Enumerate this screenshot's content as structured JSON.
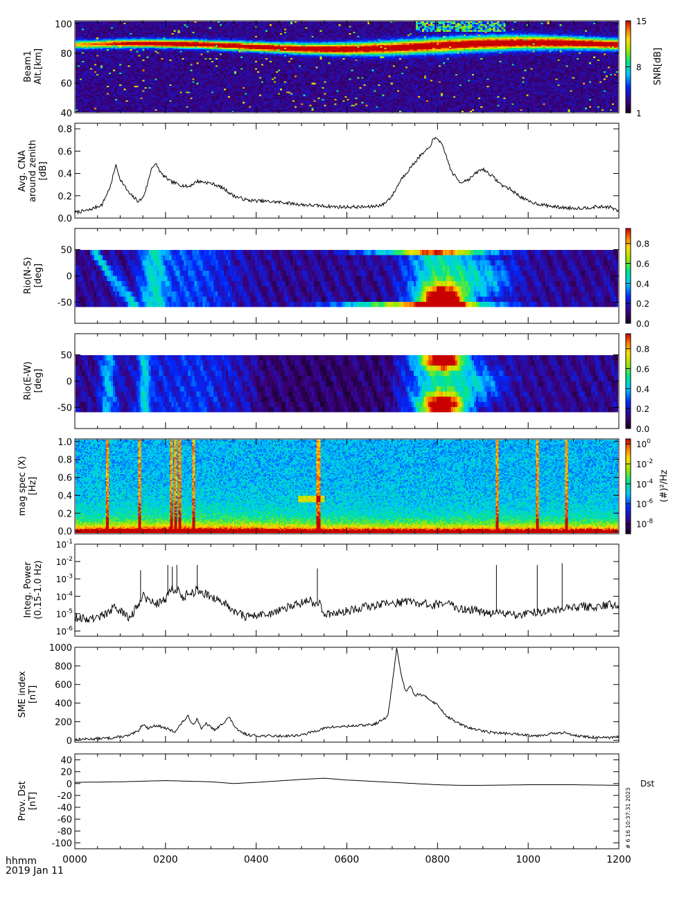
{
  "xaxis": {
    "label": "hhmm",
    "date": "2019 Jan 11",
    "range": [
      0,
      12
    ],
    "ticks": [
      0,
      2,
      4,
      6,
      8,
      10,
      12
    ],
    "tick_labels": [
      "0000",
      "0200",
      "0400",
      "0600",
      "0800",
      "1000",
      "1200"
    ]
  },
  "stamp": "#   6 16 10:37:31 2023",
  "panels": [
    {
      "id": "p1",
      "type": "heatmap",
      "scheme": "snr",
      "ylabel": [
        "Beam1",
        "Alt.[km]"
      ],
      "yrange": [
        40,
        102
      ],
      "yticks": [
        40,
        60,
        80,
        100
      ],
      "ytick_labels": [
        "40",
        "60",
        "80",
        "100"
      ],
      "colorbar": {
        "label": "SNR[dB]",
        "range": [
          1,
          15
        ],
        "ticks": [
          1,
          8,
          15
        ],
        "tick_labels": [
          "1",
          "8",
          "15"
        ]
      }
    },
    {
      "id": "p2",
      "type": "line",
      "ylabel": [
        "Avg. CNA",
        "around zenith",
        "[dB]"
      ],
      "yrange": [
        0,
        0.85
      ],
      "yticks": [
        0,
        0.2,
        0.4,
        0.6,
        0.8
      ],
      "ytick_labels": [
        "0.0",
        "0.2",
        "0.4",
        "0.6",
        "0.8"
      ],
      "series": "cna"
    },
    {
      "id": "p3",
      "type": "heatmap",
      "scheme": "rio",
      "ylabel": [
        "Rio(N-S)",
        "[deg]"
      ],
      "yrange": [
        -90,
        90
      ],
      "data_yrange": [
        -55,
        55
      ],
      "yticks": [
        -50,
        0,
        50
      ],
      "ytick_labels": [
        "-50",
        "0",
        "50"
      ],
      "colorbar": {
        "label": "",
        "range": [
          0,
          0.95
        ],
        "ticks": [
          0,
          0.2,
          0.4,
          0.6,
          0.8
        ],
        "tick_labels": [
          "0.0",
          "0.2",
          "0.4",
          "0.6",
          "0.8"
        ]
      }
    },
    {
      "id": "p4",
      "type": "heatmap",
      "scheme": "rio",
      "ylabel": [
        "Rio(E-W)",
        "[deg]"
      ],
      "yrange": [
        -90,
        90
      ],
      "data_yrange": [
        -55,
        55
      ],
      "yticks": [
        -50,
        0,
        50
      ],
      "ytick_labels": [
        "-50",
        "0",
        "50"
      ],
      "colorbar": {
        "label": "",
        "range": [
          0,
          0.95
        ],
        "ticks": [
          0,
          0.2,
          0.4,
          0.6,
          0.8
        ],
        "tick_labels": [
          "0.0",
          "0.2",
          "0.4",
          "0.6",
          "0.8"
        ]
      }
    },
    {
      "id": "p5",
      "type": "heatmap",
      "scheme": "mag",
      "ylabel": [
        "mag spec (X)",
        "[Hz]"
      ],
      "yrange": [
        -0.03,
        1.03
      ],
      "yticks": [
        0,
        0.2,
        0.4,
        0.6,
        0.8,
        1.0
      ],
      "ytick_labels": [
        "0.0",
        "0.2",
        "0.4",
        "0.6",
        "0.8",
        "1.0"
      ],
      "colorbar": {
        "label": "(#)²/Hz",
        "range": [
          -9,
          0.5
        ],
        "ticks": [
          0,
          -2,
          -4,
          -6,
          -8
        ],
        "tick_labels": [
          [
            "10",
            "0"
          ],
          [
            "10",
            "-2"
          ],
          [
            "10",
            "-4"
          ],
          [
            "10",
            "-6"
          ],
          [
            "10",
            "-8"
          ]
        ]
      }
    },
    {
      "id": "p6",
      "type": "line",
      "log": true,
      "ylabel": [
        "Integ. Power",
        "(0.15-1.0 Hz)"
      ],
      "yrange": [
        -6.3,
        -1
      ],
      "yticks": [
        -6,
        -5,
        -4,
        -3,
        -2,
        -1
      ],
      "ytick_labels": [
        [
          "10",
          "-6"
        ],
        [
          "10",
          "-5"
        ],
        [
          "10",
          "-4"
        ],
        [
          "10",
          "-3"
        ],
        [
          "10",
          "-2"
        ],
        [
          "10",
          "-1"
        ]
      ],
      "series": "power"
    },
    {
      "id": "p7",
      "type": "line",
      "ylabel": [
        "SME index",
        "[nT]"
      ],
      "yrange": [
        -20,
        1000
      ],
      "yticks": [
        0,
        200,
        400,
        600,
        800,
        1000
      ],
      "ytick_labels": [
        "0",
        "200",
        "400",
        "600",
        "800",
        "1000"
      ],
      "series": "sme"
    },
    {
      "id": "p8",
      "type": "line",
      "ylabel": [
        "Prov. Dst",
        "[nT]"
      ],
      "yrange": [
        -110,
        50
      ],
      "yticks": [
        -100,
        -80,
        -60,
        -40,
        -20,
        0,
        20,
        40
      ],
      "ytick_labels": [
        "-100",
        "-80",
        "-60",
        "-40",
        "-20",
        "0",
        "20",
        "40"
      ],
      "series": "dst",
      "right_label": "Dst"
    }
  ],
  "chart_data": {
    "type": "line",
    "x_unit": "hours UT (2019 Jan 11)",
    "series": [
      {
        "name": "Avg. CNA around zenith [dB]",
        "key": "cna",
        "x": [
          0,
          0.3,
          0.6,
          0.8,
          0.9,
          1.0,
          1.2,
          1.4,
          1.5,
          1.6,
          1.7,
          1.8,
          1.9,
          2.1,
          2.3,
          2.5,
          2.7,
          2.9,
          3.1,
          3.3,
          3.5,
          3.8,
          4.2,
          4.6,
          5.0,
          5.4,
          5.8,
          6.1,
          6.5,
          6.8,
          7.0,
          7.2,
          7.4,
          7.6,
          7.8,
          7.9,
          8.0,
          8.1,
          8.2,
          8.3,
          8.5,
          8.7,
          8.9,
          9.0,
          9.2,
          9.4,
          9.6,
          9.8,
          10.0,
          10.3,
          10.6,
          10.9,
          11.2,
          11.5,
          11.8,
          12.0
        ],
        "y": [
          0.05,
          0.07,
          0.12,
          0.3,
          0.48,
          0.35,
          0.22,
          0.15,
          0.18,
          0.3,
          0.46,
          0.48,
          0.4,
          0.33,
          0.3,
          0.28,
          0.33,
          0.32,
          0.3,
          0.26,
          0.2,
          0.16,
          0.15,
          0.14,
          0.12,
          0.11,
          0.1,
          0.1,
          0.1,
          0.12,
          0.2,
          0.35,
          0.45,
          0.55,
          0.62,
          0.7,
          0.72,
          0.65,
          0.55,
          0.42,
          0.32,
          0.35,
          0.42,
          0.44,
          0.38,
          0.3,
          0.26,
          0.2,
          0.15,
          0.12,
          0.1,
          0.09,
          0.09,
          0.1,
          0.1,
          0.06
        ]
      },
      {
        "name": "Integ. Power (0.15-1.0 Hz)",
        "key": "power",
        "y_scale": "log10",
        "x": [
          0,
          0.3,
          0.5,
          0.7,
          0.9,
          1.0,
          1.1,
          1.2,
          1.4,
          1.5,
          1.6,
          1.8,
          2.0,
          2.1,
          2.2,
          2.3,
          2.4,
          2.5,
          2.6,
          2.7,
          2.8,
          3.0,
          3.2,
          3.5,
          3.8,
          4.0,
          4.3,
          4.6,
          4.9,
          5.1,
          5.3,
          5.4,
          5.5,
          5.7,
          5.9,
          6.1,
          6.4,
          6.7,
          7.0,
          7.3,
          7.6,
          7.9,
          8.2,
          8.5,
          8.8,
          9.1,
          9.3,
          9.5,
          9.7,
          10.0,
          10.3,
          10.6,
          10.9,
          11.2,
          11.5,
          11.8,
          12.0
        ],
        "y": [
          -5.2,
          -5.3,
          -5.2,
          -5.0,
          -4.6,
          -4.9,
          -5.0,
          -5.3,
          -4.5,
          -3.8,
          -4.2,
          -4.4,
          -4.2,
          -3.5,
          -3.8,
          -3.6,
          -4.2,
          -3.6,
          -3.9,
          -3.6,
          -3.8,
          -4.0,
          -4.2,
          -4.8,
          -5.2,
          -5.1,
          -5.0,
          -4.7,
          -4.5,
          -4.2,
          -4.4,
          -4.4,
          -5.0,
          -5.0,
          -4.9,
          -4.8,
          -4.6,
          -4.5,
          -4.4,
          -4.3,
          -4.4,
          -4.5,
          -4.4,
          -4.7,
          -4.8,
          -5.0,
          -4.9,
          -5.0,
          -5.1,
          -5.0,
          -4.9,
          -4.8,
          -4.7,
          -4.6,
          -4.6,
          -4.5,
          -4.7
        ]
      },
      {
        "name": "SME index [nT]",
        "key": "sme",
        "x": [
          0,
          0.4,
          0.8,
          1.2,
          1.4,
          1.5,
          1.6,
          1.8,
          2.0,
          2.2,
          2.4,
          2.5,
          2.6,
          2.7,
          2.8,
          2.9,
          3.0,
          3.1,
          3.3,
          3.4,
          3.5,
          3.6,
          3.8,
          4.0,
          4.5,
          5.0,
          5.3,
          5.6,
          6.0,
          6.3,
          6.6,
          6.9,
          7.0,
          7.1,
          7.2,
          7.3,
          7.4,
          7.5,
          7.6,
          7.8,
          8.0,
          8.2,
          8.4,
          8.6,
          8.8,
          9.0,
          9.3,
          9.6,
          9.9,
          10.2,
          10.5,
          10.8,
          11.0,
          11.2,
          11.5,
          11.8,
          12.0
        ],
        "y": [
          10,
          15,
          25,
          50,
          100,
          180,
          130,
          160,
          130,
          90,
          210,
          260,
          170,
          230,
          120,
          180,
          140,
          110,
          200,
          250,
          170,
          100,
          60,
          50,
          45,
          55,
          100,
          140,
          150,
          160,
          170,
          250,
          600,
          1000,
          700,
          520,
          600,
          480,
          500,
          450,
          380,
          260,
          200,
          150,
          120,
          100,
          80,
          70,
          60,
          50,
          70,
          80,
          60,
          40,
          30,
          25,
          40
        ]
      },
      {
        "name": "Prov. Dst [nT]",
        "key": "dst",
        "x": [
          0,
          1,
          2,
          3,
          3.5,
          4,
          5,
          5.5,
          6,
          7,
          8,
          8.5,
          9,
          10,
          11,
          12
        ],
        "y": [
          2,
          3,
          5,
          3,
          0,
          2,
          7,
          9,
          6,
          2,
          -2,
          -3,
          -3,
          -2,
          -2,
          -3
        ]
      }
    ],
    "heatmaps": [
      {
        "name": "Beam1 SNR",
        "unit": "dB",
        "x_range": [
          0,
          12
        ],
        "y_range_km": [
          40,
          100
        ],
        "feature": "high-SNR layer near 85-88 km across the interval"
      },
      {
        "name": "Rio(N-S) absorption",
        "range": [
          0,
          0.9
        ],
        "y_range_deg": [
          -55,
          55
        ],
        "feature": "peak near 0800, south side"
      },
      {
        "name": "Rio(E-W) absorption",
        "range": [
          0,
          0.9
        ],
        "y_range_deg": [
          -55,
          55
        ],
        "feature": "peak near 0800"
      },
      {
        "name": "mag spec (X)",
        "y_range_hz": [
          0,
          1
        ],
        "feature": "vertical spikes near 0215, 0230, 0245, 0535, 0930, 1020, 1110"
      }
    ]
  }
}
